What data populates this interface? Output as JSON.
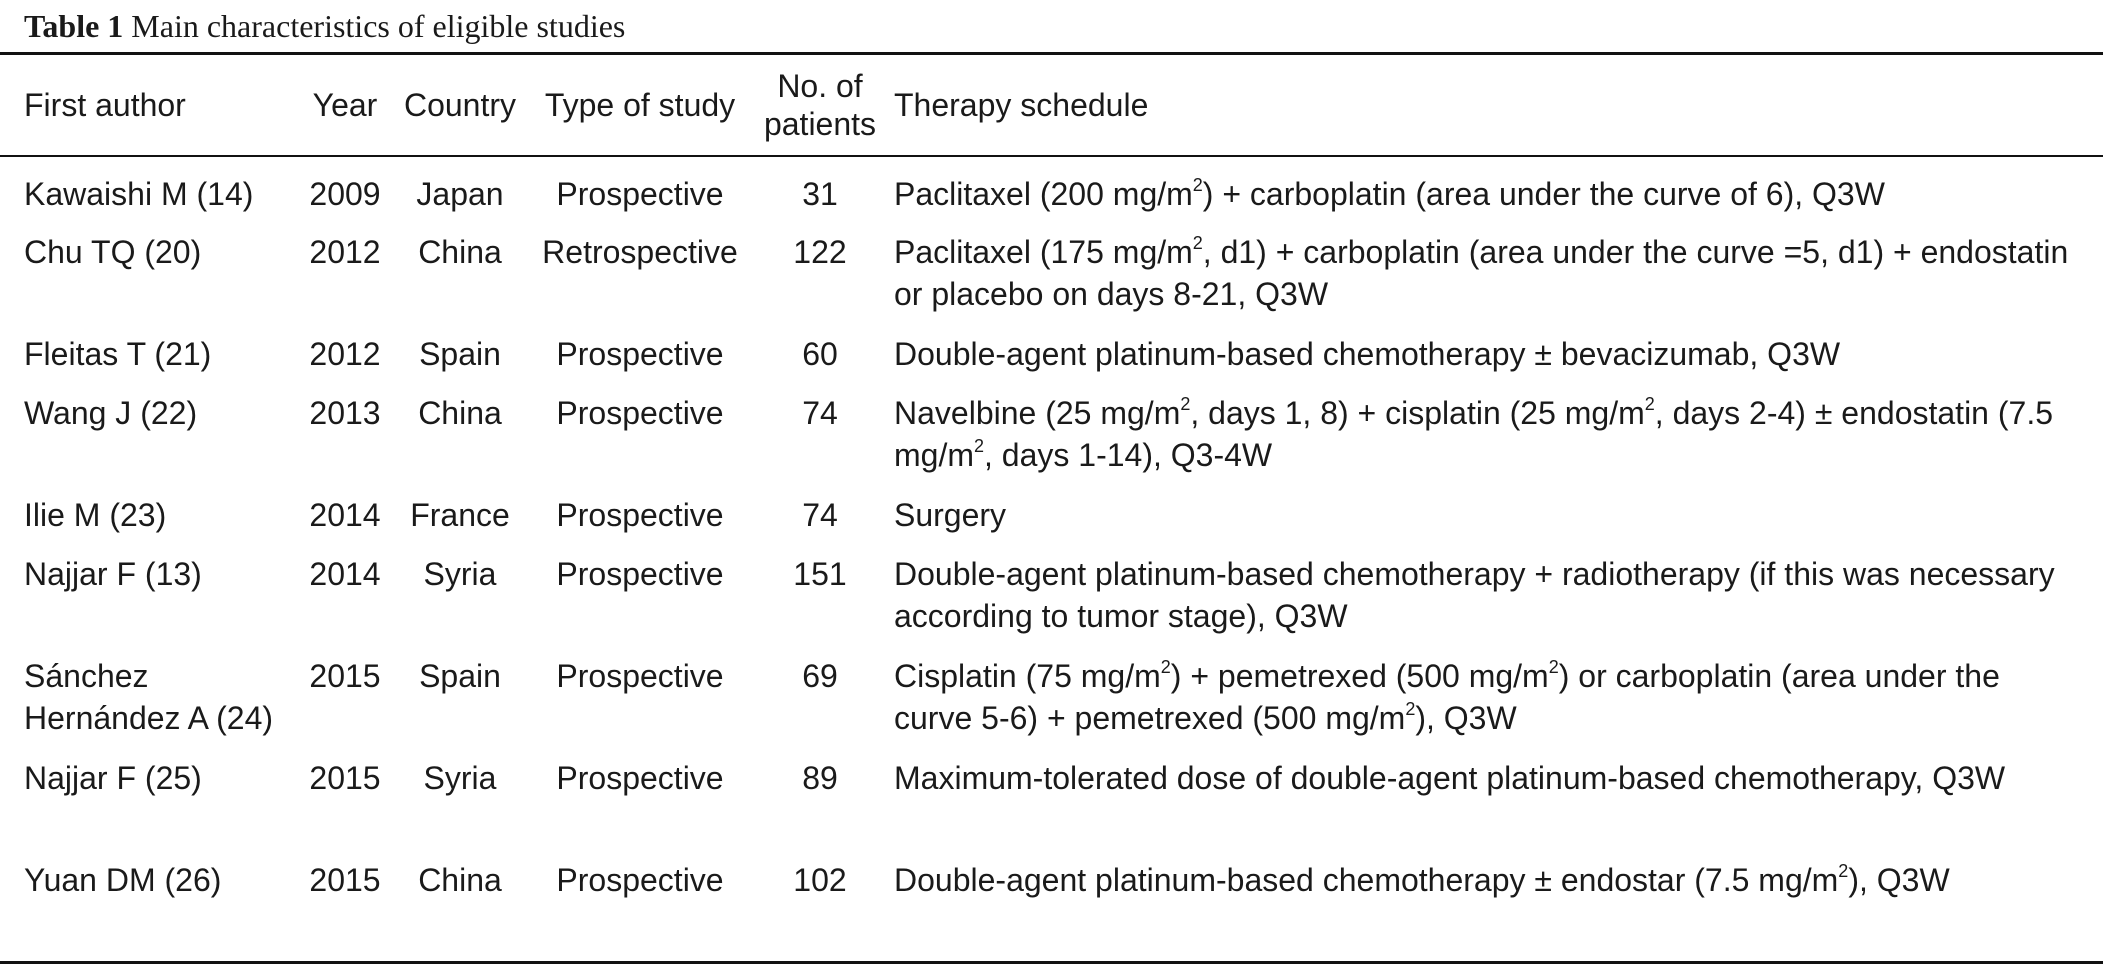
{
  "caption": {
    "label": "Table 1",
    "title": " Main characteristics of eligible studies"
  },
  "table": {
    "headers": [
      "First author",
      "Year",
      "Country",
      "Type of study",
      "No. of patients",
      "Therapy schedule"
    ],
    "rows": [
      {
        "author": "Kawaishi M (14)",
        "year": "2009",
        "country": "Japan",
        "type": "Prospective",
        "patients": "31",
        "schedule": [
          "Paclitaxel (200 mg/m",
          "2",
          ") + carboplatin (area under the curve of 6), Q3W"
        ]
      },
      {
        "author": "Chu TQ (20)",
        "year": "2012",
        "country": "China",
        "type": "Retrospective",
        "patients": "122",
        "schedule": [
          "Paclitaxel (175 mg/m",
          "2",
          ", d1) + carboplatin (area under the curve =5, d1) + endostatin or placebo on days 8-21, Q3W"
        ]
      },
      {
        "author": "Fleitas T (21)",
        "year": "2012",
        "country": "Spain",
        "type": "Prospective",
        "patients": "60",
        "schedule": [
          "Double-agent platinum-based chemotherapy ± bevacizumab, Q3W"
        ]
      },
      {
        "author": "Wang J (22)",
        "year": "2013",
        "country": "China",
        "type": "Prospective",
        "patients": "74",
        "schedule": [
          "Navelbine (25 mg/m",
          "2",
          ", days 1, 8) + cisplatin (25 mg/m",
          "2",
          ", days 2-4) ± endostatin (7.5 mg/m",
          "2",
          ", days 1-14), Q3-4W"
        ]
      },
      {
        "author": "Ilie M (23)",
        "year": "2014",
        "country": "France",
        "type": "Prospective",
        "patients": "74",
        "schedule": [
          "Surgery"
        ]
      },
      {
        "author": "Najjar F (13)",
        "year": "2014",
        "country": "Syria",
        "type": "Prospective",
        "patients": "151",
        "schedule": [
          "Double-agent platinum-based chemotherapy + radiotherapy (if this was necessary according to tumor stage), Q3W"
        ]
      },
      {
        "author": "Sánchez Hernández A (24)",
        "year": "2015",
        "country": "Spain",
        "type": "Prospective",
        "patients": "69",
        "schedule": [
          "Cisplatin (75 mg/m",
          "2",
          ") + pemetrexed (500 mg/m",
          "2",
          ") or carboplatin (area under the curve 5-6) + pemetrexed (500 mg/m",
          "2",
          "), Q3W"
        ]
      },
      {
        "author": "Najjar F (25)",
        "year": "2015",
        "country": "Syria",
        "type": "Prospective",
        "patients": "89",
        "schedule": [
          "Maximum-tolerated dose of double-agent platinum-based chemotherapy, Q3W"
        ]
      },
      {
        "author": "Yuan DM (26)",
        "year": "2015",
        "country": "China",
        "type": "Prospective",
        "patients": "102",
        "schedule": [
          "Double-agent platinum-based chemotherapy ± endostar (7.5 mg/m",
          "2",
          "), Q3W"
        ]
      }
    ]
  }
}
